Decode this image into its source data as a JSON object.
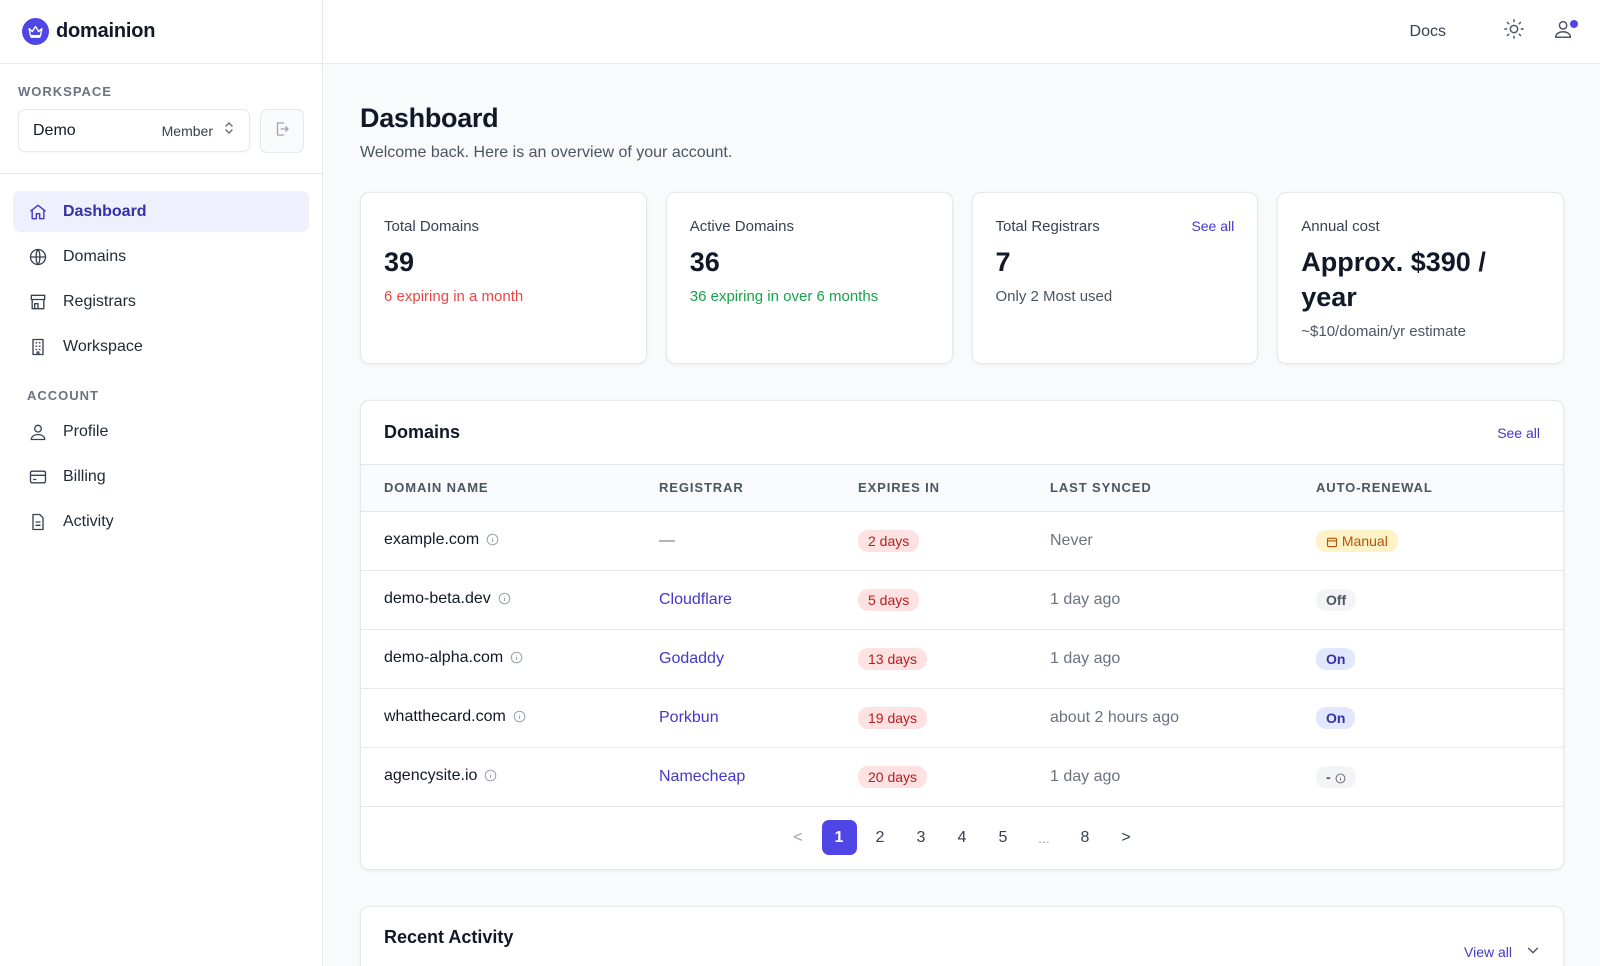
{
  "brand": {
    "name": "domainion"
  },
  "workspace": {
    "section_label": "WORKSPACE",
    "name": "Demo",
    "role": "Member"
  },
  "nav": {
    "items": [
      {
        "label": "Dashboard",
        "icon": "home-icon",
        "active": true
      },
      {
        "label": "Domains",
        "icon": "globe-icon"
      },
      {
        "label": "Registrars",
        "icon": "store-icon"
      },
      {
        "label": "Workspace",
        "icon": "building-icon"
      }
    ],
    "account_label": "ACCOUNT",
    "account_items": [
      {
        "label": "Profile",
        "icon": "user-icon"
      },
      {
        "label": "Billing",
        "icon": "credit-card-icon"
      },
      {
        "label": "Activity",
        "icon": "document-icon"
      }
    ]
  },
  "header": {
    "docs_label": "Docs"
  },
  "page": {
    "title": "Dashboard",
    "subtitle": "Welcome back. Here is an overview of your account."
  },
  "stats": [
    {
      "label": "Total Domains",
      "value": "39",
      "note": "6 expiring in a month",
      "tone": "red"
    },
    {
      "label": "Active Domains",
      "value": "36",
      "note": "36 expiring in over 6 months",
      "tone": "green"
    },
    {
      "label": "Total Registrars",
      "value": "7",
      "note": "Only 2 Most used",
      "link": "See all"
    },
    {
      "label": "Annual cost",
      "value": "Approx. $390 / year",
      "note": "~$10/domain/yr estimate"
    }
  ],
  "domains": {
    "title": "Domains",
    "see_all": "See all",
    "columns": [
      "DOMAIN NAME",
      "REGISTRAR",
      "EXPIRES IN",
      "LAST SYNCED",
      "AUTO-RENEWAL"
    ],
    "rows": [
      {
        "domain": "example.com",
        "registrar": "—",
        "expires": "2 days",
        "synced": "Never",
        "renewal": "Manual",
        "renewal_type": "manual"
      },
      {
        "domain": "demo-beta.dev",
        "registrar": "Cloudflare",
        "expires": "5 days",
        "synced": "1 day ago",
        "renewal": "Off",
        "renewal_type": "off"
      },
      {
        "domain": "demo-alpha.com",
        "registrar": "Godaddy",
        "expires": "13 days",
        "synced": "1 day ago",
        "renewal": "On",
        "renewal_type": "on"
      },
      {
        "domain": "whatthecard.com",
        "registrar": "Porkbun",
        "expires": "19 days",
        "synced": "about 2 hours ago",
        "renewal": "On",
        "renewal_type": "on"
      },
      {
        "domain": "agencysite.io",
        "registrar": "Namecheap",
        "expires": "20 days",
        "synced": "1 day ago",
        "renewal": "-",
        "renewal_type": "unknown"
      }
    ],
    "pagination": {
      "prev": "<",
      "pages": [
        "1",
        "2",
        "3",
        "4",
        "5"
      ],
      "ellipsis": "...",
      "last": "8",
      "next": ">",
      "current": "1"
    }
  },
  "recent_activity": {
    "title": "Recent Activity",
    "view_all": "View all"
  },
  "colors": {
    "accent": "#4f46e5",
    "danger_bg": "#fee2e2",
    "danger_text": "#b91c1c",
    "success": "#16a34a",
    "warning_bg": "#fef3c7"
  }
}
